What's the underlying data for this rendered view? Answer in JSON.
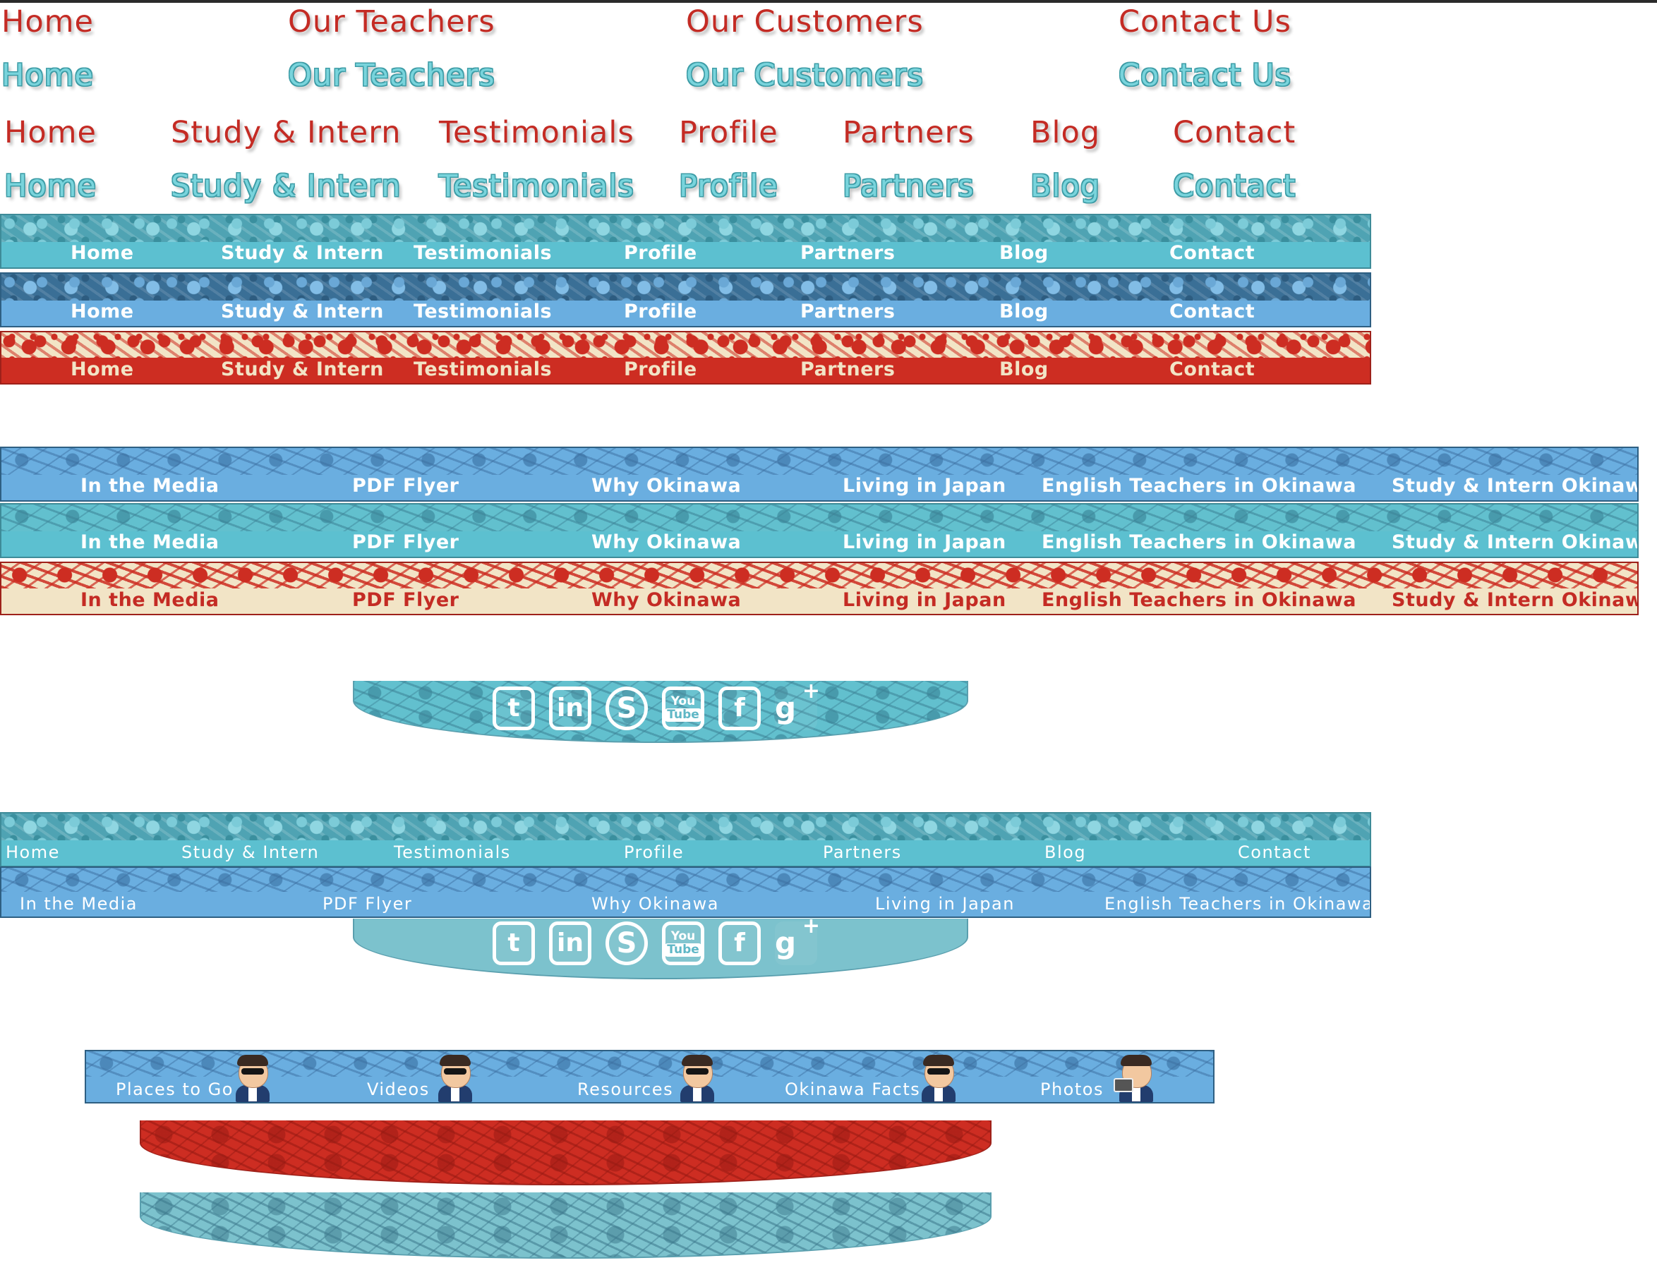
{
  "nav_text_2": {
    "items": [
      "Home",
      "Our Teachers",
      "Our Customers",
      "Contact Us"
    ]
  },
  "nav_text_7": {
    "items": [
      "Home",
      "Study & Intern",
      "Testimonials",
      "Profile",
      "Partners",
      "Blog",
      "Contact"
    ]
  },
  "nav_bar_7": {
    "items": [
      "Home",
      "Study & Intern",
      "Testimonials",
      "Profile",
      "Partners",
      "Blog",
      "Contact"
    ]
  },
  "info_bar_6": {
    "items": [
      "In the Media",
      "PDF Flyer",
      "Why Okinawa",
      "Living in Japan",
      "English Teachers in Okinawa",
      "Study & Intern Okinawa"
    ]
  },
  "combo_nav": {
    "top": [
      "Home",
      "Study & Intern",
      "Testimonials",
      "Profile",
      "Partners",
      "Blog",
      "Contact"
    ],
    "bottom": [
      "In the Media",
      "PDF Flyer",
      "Why Okinawa",
      "Living in Japan",
      "English Teachers in Okinawa"
    ]
  },
  "social": {
    "icons": [
      "twitter-icon",
      "linkedin-icon",
      "skype-icon",
      "youtube-icon",
      "facebook-icon",
      "google-plus-icon"
    ],
    "glyphs": {
      "twitter": "t",
      "linkedin": "in",
      "skype": "S",
      "youtube_top": "You",
      "youtube_bottom": "Tube",
      "facebook": "f",
      "google_plus": "g",
      "google_plus_sign": "+"
    }
  },
  "okinawa_nav": {
    "items": [
      "Places to Go",
      "Videos",
      "Resources",
      "Okinawa Facts",
      "Photos"
    ]
  },
  "colors": {
    "red": "#c42b24",
    "teal": "#79d4dc",
    "teal_band": "#5cc0d0",
    "blue_band": "#6aaee0",
    "cream": "#f2e4c6",
    "panel_teal": "#7cc2cd"
  }
}
